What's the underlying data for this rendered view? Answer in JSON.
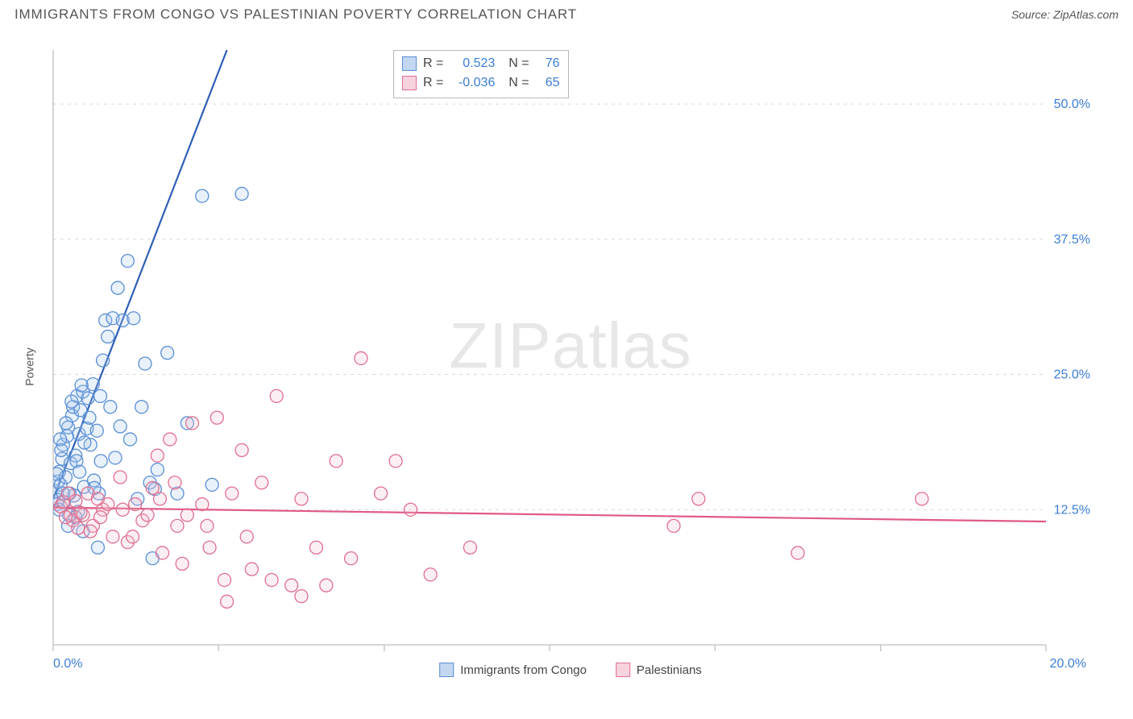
{
  "title": "IMMIGRANTS FROM CONGO VS PALESTINIAN POVERTY CORRELATION CHART",
  "source_prefix": "Source: ",
  "source_link": "ZipAtlas.com",
  "ylabel": "Poverty",
  "watermark_a": "ZIP",
  "watermark_b": "atlas",
  "chart": {
    "type": "scatter",
    "background_color": "#ffffff",
    "grid_color": "#d9d9d9",
    "axis_color": "#bfbfbf",
    "tick_color": "#bfbfbf",
    "xlim": [
      0,
      20
    ],
    "ylim": [
      0,
      55
    ],
    "xticks": [
      0,
      3.33,
      6.67,
      10,
      13.33,
      16.67,
      20
    ],
    "xtick_labels_shown": {
      "0": "0.0%",
      "20": "20.0%"
    },
    "yticks": [
      12.5,
      25.0,
      37.5,
      50.0
    ],
    "ytick_labels": [
      "12.5%",
      "25.0%",
      "37.5%",
      "50.0%"
    ],
    "ytick_label_color": "#3b7dd8",
    "xtick_label_color": "#3b7dd8",
    "marker_radius": 8,
    "marker_fill_opacity": 0.25,
    "marker_stroke_width": 1.3,
    "line_width": 2.2,
    "line_dash_ext": "7,6"
  },
  "series": [
    {
      "name": "Immigrants from Congo",
      "color_stroke": "#5a8fd6",
      "color_fill": "#a9c7ea",
      "line_color": "#2f5fb5",
      "swatch_fill": "#c3d7f0",
      "swatch_stroke": "#5a8fd6",
      "R": "0.523",
      "N": "76",
      "trend": {
        "x1": 0,
        "y1": 13.5,
        "x2": 3.5,
        "y2": 55,
        "ext_x2": 5.6,
        "ext_y2": 80
      },
      "points": [
        [
          0.05,
          14.2
        ],
        [
          0.08,
          13.0
        ],
        [
          0.1,
          15.1
        ],
        [
          0.12,
          16.0
        ],
        [
          0.15,
          14.8
        ],
        [
          0.18,
          17.2
        ],
        [
          0.2,
          18.5
        ],
        [
          0.22,
          13.2
        ],
        [
          0.25,
          15.5
        ],
        [
          0.28,
          19.3
        ],
        [
          0.3,
          20.1
        ],
        [
          0.32,
          12.0
        ],
        [
          0.35,
          16.8
        ],
        [
          0.38,
          21.2
        ],
        [
          0.4,
          22.0
        ],
        [
          0.42,
          13.8
        ],
        [
          0.45,
          17.5
        ],
        [
          0.48,
          23.0
        ],
        [
          0.52,
          19.5
        ],
        [
          0.55,
          21.7
        ],
        [
          0.6,
          23.4
        ],
        [
          0.62,
          14.6
        ],
        [
          0.68,
          20.0
        ],
        [
          0.7,
          22.8
        ],
        [
          0.75,
          18.5
        ],
        [
          0.8,
          24.1
        ],
        [
          0.82,
          15.2
        ],
        [
          0.88,
          19.8
        ],
        [
          0.92,
          14.0
        ],
        [
          0.96,
          17.0
        ],
        [
          1.0,
          26.3
        ],
        [
          1.05,
          30.0
        ],
        [
          1.1,
          28.5
        ],
        [
          1.15,
          22.0
        ],
        [
          1.2,
          30.2
        ],
        [
          1.25,
          17.3
        ],
        [
          1.3,
          33.0
        ],
        [
          1.35,
          20.2
        ],
        [
          1.4,
          30.0
        ],
        [
          1.5,
          35.5
        ],
        [
          1.55,
          19.0
        ],
        [
          1.62,
          30.2
        ],
        [
          1.7,
          13.5
        ],
        [
          1.78,
          22.0
        ],
        [
          1.85,
          26.0
        ],
        [
          1.95,
          15.0
        ],
        [
          2.0,
          8.0
        ],
        [
          2.05,
          14.4
        ],
        [
          2.1,
          16.2
        ],
        [
          2.3,
          27.0
        ],
        [
          2.5,
          14.0
        ],
        [
          2.7,
          20.5
        ],
        [
          3.0,
          41.5
        ],
        [
          3.2,
          14.8
        ],
        [
          3.8,
          41.7
        ],
        [
          0.3,
          11.0
        ],
        [
          0.6,
          10.5
        ],
        [
          0.5,
          12.3
        ],
        [
          0.45,
          11.8
        ],
        [
          0.9,
          9.0
        ],
        [
          0.14,
          19.0
        ],
        [
          0.16,
          18.0
        ],
        [
          0.26,
          20.5
        ],
        [
          0.33,
          14.0
        ],
        [
          0.37,
          22.5
        ],
        [
          0.47,
          17.0
        ],
        [
          0.53,
          16.0
        ],
        [
          0.57,
          24.0
        ],
        [
          0.63,
          18.7
        ],
        [
          0.73,
          21.0
        ],
        [
          0.83,
          14.5
        ],
        [
          0.95,
          23.0
        ],
        [
          0.1,
          13.4
        ],
        [
          0.07,
          15.8
        ],
        [
          0.12,
          12.5
        ],
        [
          0.2,
          14.0
        ]
      ]
    },
    {
      "name": "Palestinians",
      "color_stroke": "#e06f8f",
      "color_fill": "#f5c1d0",
      "line_color": "#e05a85",
      "swatch_fill": "#f7d3de",
      "swatch_stroke": "#e06f8f",
      "R": "-0.036",
      "N": "65",
      "trend": {
        "x1": 0,
        "y1": 12.7,
        "x2": 20,
        "y2": 11.4
      },
      "points": [
        [
          0.15,
          12.8
        ],
        [
          0.2,
          13.2
        ],
        [
          0.3,
          14.0
        ],
        [
          0.35,
          12.0
        ],
        [
          0.4,
          11.5
        ],
        [
          0.45,
          13.3
        ],
        [
          0.5,
          10.8
        ],
        [
          0.6,
          12.0
        ],
        [
          0.7,
          14.0
        ],
        [
          0.8,
          11.0
        ],
        [
          0.9,
          13.5
        ],
        [
          1.0,
          12.5
        ],
        [
          1.2,
          10.0
        ],
        [
          1.35,
          15.5
        ],
        [
          1.5,
          9.5
        ],
        [
          1.65,
          13.0
        ],
        [
          1.8,
          11.5
        ],
        [
          2.0,
          14.5
        ],
        [
          2.1,
          17.5
        ],
        [
          2.2,
          8.5
        ],
        [
          2.35,
          19.0
        ],
        [
          2.5,
          11.0
        ],
        [
          2.6,
          7.5
        ],
        [
          2.8,
          20.5
        ],
        [
          3.0,
          13.0
        ],
        [
          3.15,
          9.0
        ],
        [
          3.3,
          21.0
        ],
        [
          3.45,
          6.0
        ],
        [
          3.6,
          14.0
        ],
        [
          3.8,
          18.0
        ],
        [
          4.0,
          7.0
        ],
        [
          4.2,
          15.0
        ],
        [
          4.5,
          23.0
        ],
        [
          4.8,
          5.5
        ],
        [
          5.0,
          13.5
        ],
        [
          5.3,
          9.0
        ],
        [
          5.7,
          17.0
        ],
        [
          6.0,
          8.0
        ],
        [
          6.2,
          26.5
        ],
        [
          6.6,
          14.0
        ],
        [
          6.9,
          17.0
        ],
        [
          7.2,
          12.5
        ],
        [
          7.6,
          6.5
        ],
        [
          8.4,
          9.0
        ],
        [
          12.5,
          11.0
        ],
        [
          13.0,
          13.5
        ],
        [
          15.0,
          8.5
        ],
        [
          17.5,
          13.5
        ],
        [
          0.25,
          11.8
        ],
        [
          0.55,
          12.2
        ],
        [
          0.75,
          10.5
        ],
        [
          0.95,
          11.8
        ],
        [
          1.1,
          13.0
        ],
        [
          1.4,
          12.5
        ],
        [
          1.6,
          10.0
        ],
        [
          1.9,
          12.0
        ],
        [
          2.15,
          13.5
        ],
        [
          2.45,
          15.0
        ],
        [
          2.7,
          12.0
        ],
        [
          3.1,
          11.0
        ],
        [
          3.5,
          4.0
        ],
        [
          3.9,
          10.0
        ],
        [
          4.4,
          6.0
        ],
        [
          5.5,
          5.5
        ],
        [
          5.0,
          4.5
        ]
      ]
    }
  ],
  "legend": {
    "items": [
      {
        "label": "Immigrants from Congo",
        "series": 0
      },
      {
        "label": "Palestinians",
        "series": 1
      }
    ]
  }
}
